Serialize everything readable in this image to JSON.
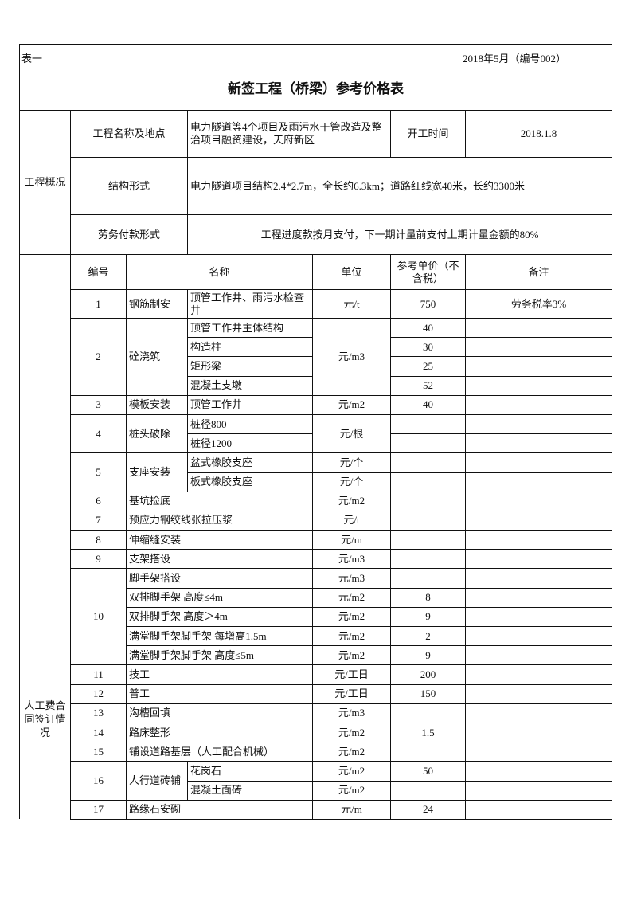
{
  "header": {
    "table_label": "表一",
    "date_code": "2018年5月（编号002）",
    "title": "新签工程（桥梁）参考价格表"
  },
  "overview": {
    "section_label": "工程概况",
    "name_label": "工程名称及地点",
    "name_value": "电力隧道等4个项目及雨污水干管改造及整治项目融资建设，天府新区",
    "start_label": "开工时间",
    "start_value": "2018.1.8",
    "structure_label": "结构形式",
    "structure_value": "电力隧道项目结构2.4*2.7m，全长约6.3km；道路红线宽40米，长约3300米",
    "payment_label": "劳务付款形式",
    "payment_value": "工程进度款按月支付，下一期计量前支付上期计量金额的80%"
  },
  "labor": {
    "section_label": "人工费合同签订情况",
    "columns": {
      "no": "编号",
      "name": "名称",
      "unit": "单位",
      "price": "参考单价（不含税）",
      "note": "备注"
    },
    "items": [
      {
        "no": "1",
        "category": "钢筋制安",
        "rows": [
          {
            "name": "顶管工作井、雨污水检查井",
            "unit": "元/t",
            "price": "750",
            "note": "劳务税率3%"
          }
        ]
      },
      {
        "no": "2",
        "category": "砼浇筑",
        "unit": "元/m3",
        "rows": [
          {
            "name": "顶管工作井主体结构",
            "price": "40"
          },
          {
            "name": "构造柱",
            "price": "30"
          },
          {
            "name": "矩形梁",
            "price": "25"
          },
          {
            "name": "混凝土支墩",
            "price": "52"
          }
        ]
      },
      {
        "no": "3",
        "category": "模板安装",
        "rows": [
          {
            "name": "顶管工作井",
            "unit": "元/m2",
            "price": "40"
          }
        ]
      },
      {
        "no": "4",
        "category": "桩头破除",
        "unit": "元/根",
        "rows": [
          {
            "name": "桩径800"
          },
          {
            "name": "桩径1200"
          }
        ]
      },
      {
        "no": "5",
        "category": "支座安装",
        "rows": [
          {
            "name": "盆式橡胶支座",
            "unit": "元/个"
          },
          {
            "name": "板式橡胶支座",
            "unit": "元/个"
          }
        ]
      },
      {
        "no": "6",
        "rows": [
          {
            "name": "基坑捡底",
            "unit": "元/m2"
          }
        ]
      },
      {
        "no": "7",
        "rows": [
          {
            "name": "预应力钢绞线张拉压浆",
            "unit": "元/t"
          }
        ]
      },
      {
        "no": "8",
        "rows": [
          {
            "name": "伸缩缝安装",
            "unit": "元/m"
          }
        ]
      },
      {
        "no": "9",
        "rows": [
          {
            "name": "支架搭设",
            "unit": "元/m3"
          }
        ]
      },
      {
        "no": "10",
        "rows": [
          {
            "name": "脚手架搭设",
            "unit": "元/m3"
          },
          {
            "name": "双排脚手架 高度≤4m",
            "unit": "元/m2",
            "price": "8"
          },
          {
            "name": "双排脚手架 高度＞4m",
            "unit": "元/m2",
            "price": "9"
          },
          {
            "name": "满堂脚手架脚手架 每增高1.5m",
            "unit": "元/m2",
            "price": "2"
          },
          {
            "name": "满堂脚手架脚手架 高度≤5m",
            "unit": "元/m2",
            "price": "9"
          }
        ]
      },
      {
        "no": "11",
        "rows": [
          {
            "name": "技工",
            "unit": "元/工日",
            "price": "200"
          }
        ]
      },
      {
        "no": "12",
        "rows": [
          {
            "name": "普工",
            "unit": "元/工日",
            "price": "150"
          }
        ]
      },
      {
        "no": "13",
        "rows": [
          {
            "name": "沟槽回填",
            "unit": "元/m3"
          }
        ]
      },
      {
        "no": "14",
        "rows": [
          {
            "name": "路床整形",
            "unit": "元/m2",
            "price": "1.5"
          }
        ]
      },
      {
        "no": "15",
        "rows": [
          {
            "name": "铺设道路基层（人工配合机械）",
            "unit": "元/m2"
          }
        ]
      },
      {
        "no": "16",
        "category": "人行道砖铺",
        "rows": [
          {
            "name": "花岗石",
            "unit": "元/m2",
            "price": "50"
          },
          {
            "name": "混凝土面砖",
            "unit": "元/m2"
          }
        ]
      },
      {
        "no": "17",
        "rows": [
          {
            "name": "路缘石安砌",
            "unit": "元/m",
            "price": "24"
          }
        ]
      }
    ]
  }
}
